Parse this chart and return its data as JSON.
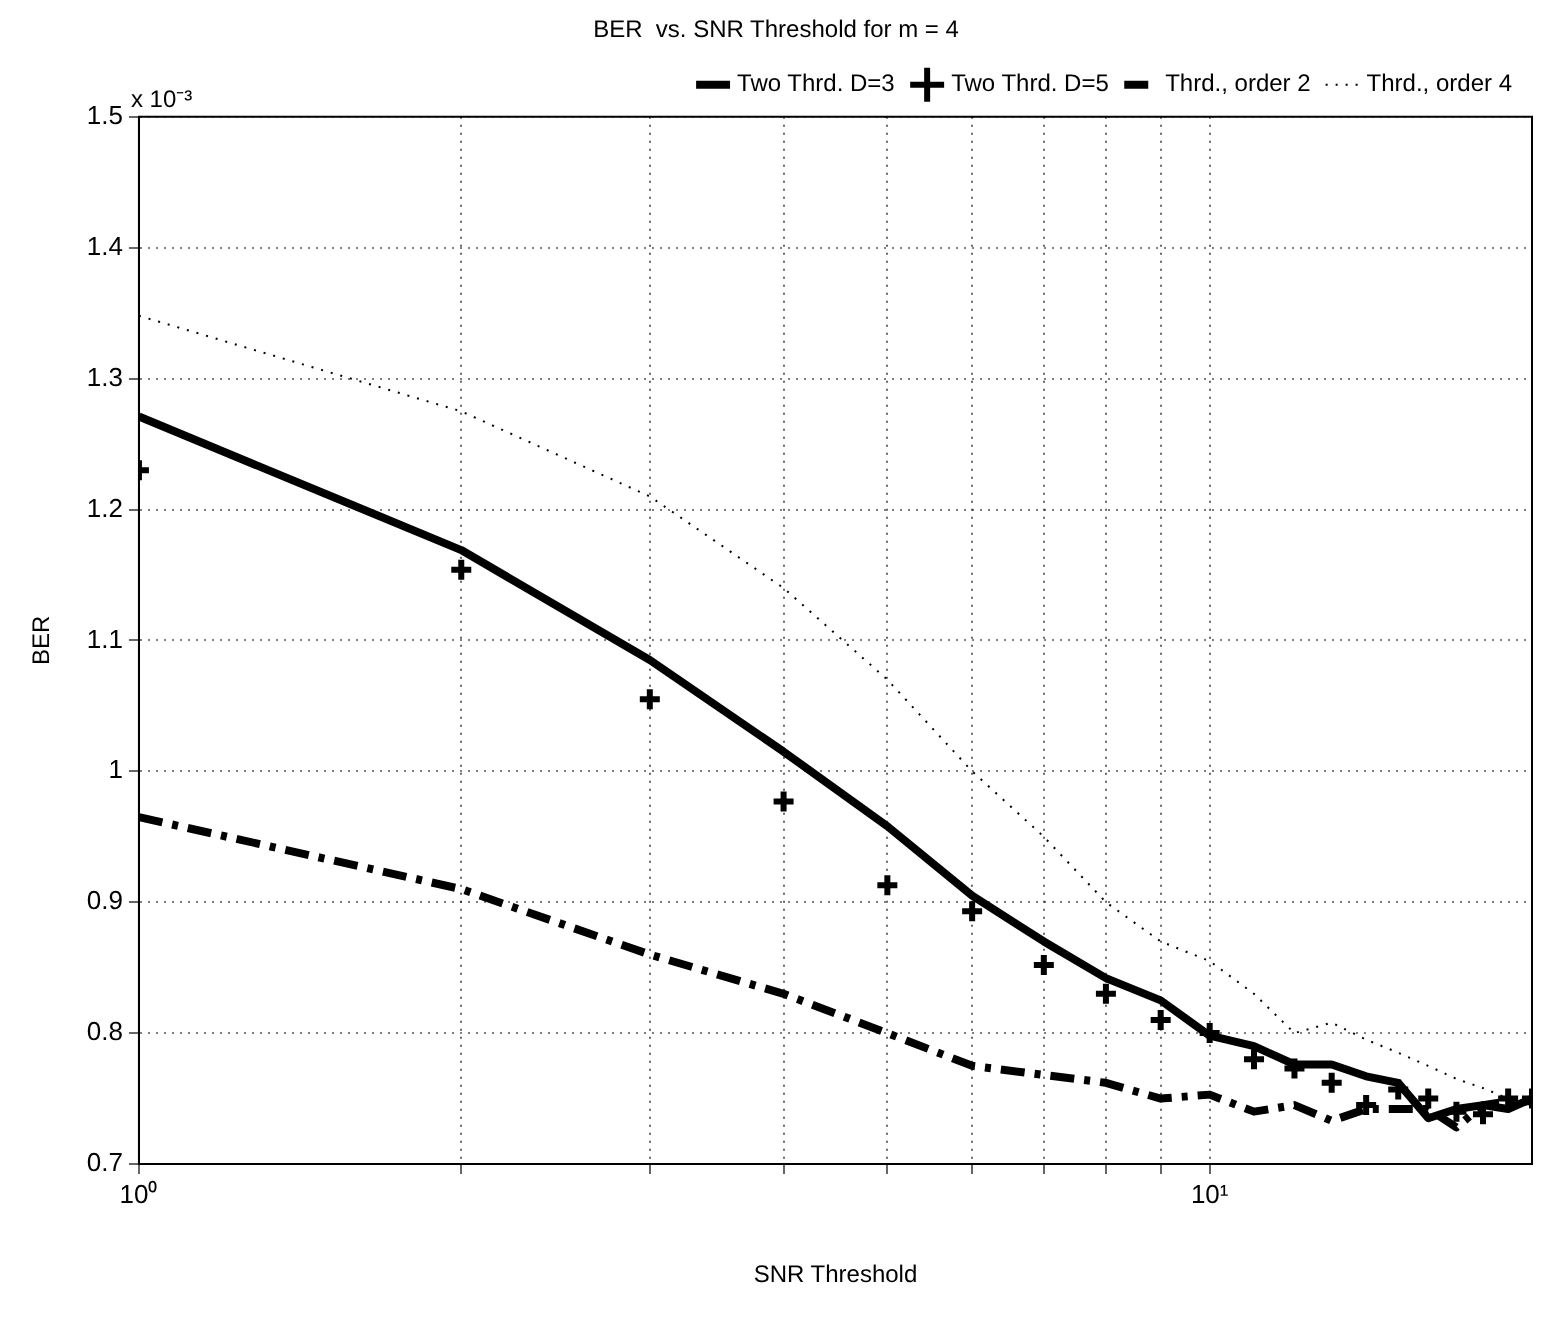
{
  "chart_data": {
    "type": "line",
    "title": "BER  vs. SNR Threshold for m = 4",
    "xlabel": "SNR Threshold",
    "ylabel": "BER",
    "annotations": [
      "x 10⁻³"
    ],
    "x": [
      1,
      2,
      3,
      4,
      5,
      6,
      7,
      8,
      9,
      10,
      11,
      12,
      13,
      14,
      15,
      16,
      17,
      18,
      19,
      20
    ],
    "series": [
      {
        "name": "Two Thrd. D=3",
        "color": "#000000",
        "line_style": "solid",
        "marker": "none",
        "values": [
          1.271,
          1.169,
          1.085,
          1.015,
          0.958,
          0.905,
          0.87,
          0.842,
          0.825,
          0.798,
          0.79,
          0.776,
          0.776,
          0.767,
          0.762,
          0.735,
          0.742,
          0.745,
          0.742,
          0.75
        ]
      },
      {
        "name": "Two Thrd. D=5",
        "type": "scatter",
        "color": "#000000",
        "marker": "cross",
        "values": [
          1.23,
          1.154,
          1.055,
          0.977,
          0.913,
          0.893,
          0.852,
          0.83,
          0.81,
          0.8,
          0.78,
          0.773,
          0.762,
          0.745,
          0.757,
          0.75,
          0.74,
          0.738,
          0.75,
          0.75
        ]
      },
      {
        "name": "Thrd., order 2",
        "color": "#000000",
        "line_style": "dashed",
        "marker": "none",
        "values": [
          0.965,
          0.91,
          0.86,
          0.83,
          0.8,
          0.775,
          0.768,
          0.762,
          0.75,
          0.753,
          0.74,
          0.745,
          0.733,
          0.742,
          0.742,
          0.742,
          0.728,
          0.745,
          0.748,
          0.748
        ]
      },
      {
        "name": "Thrd., order 4",
        "color": "#000000",
        "line_style": "dotted",
        "marker": "none",
        "values": [
          1.348,
          1.275,
          1.21,
          1.14,
          1.07,
          1.0,
          0.95,
          0.9,
          0.87,
          0.855,
          0.83,
          0.8,
          0.808,
          0.795,
          0.785,
          0.775,
          0.765,
          0.758,
          0.75,
          0.745
        ]
      }
    ],
    "log": "x",
    "xlim": [
      1,
      20
    ],
    "xticks": [
      {
        "value": 1,
        "label": "10⁰"
      },
      {
        "value": 2,
        "label": null
      },
      {
        "value": 3,
        "label": null
      },
      {
        "value": 4,
        "label": null
      },
      {
        "value": 5,
        "label": null
      },
      {
        "value": 6,
        "label": null
      },
      {
        "value": 7,
        "label": null
      },
      {
        "value": 8,
        "label": null
      },
      {
        "value": 9,
        "label": null
      },
      {
        "value": 10,
        "label": "10¹"
      }
    ],
    "ylim": [
      0.7,
      1.5
    ],
    "yticks": [
      0.7,
      0.8,
      0.9,
      1,
      1.1,
      1.2,
      1.3,
      1.4,
      1.5
    ],
    "grid": true,
    "legend": "top right"
  }
}
